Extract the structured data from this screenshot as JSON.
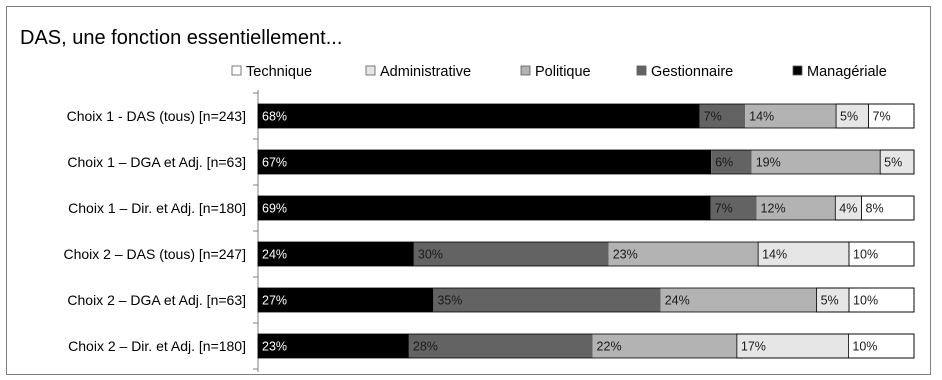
{
  "chart_data": {
    "type": "bar",
    "orientation": "horizontal",
    "stacked": "percent",
    "title": "DAS, une fonction essentiellement...",
    "legend_position": "top",
    "categories": [
      "Choix 1 - DAS (tous) [n=243]",
      "Choix 1 – DGA et Adj. [n=63]",
      "Choix 1 – Dir. et Adj. [n=180]",
      "Choix 2 – DAS (tous) [n=247]",
      "Choix 2 – DGA et Adj. [n=63]",
      "Choix 2 – Dir. et Adj. [n=180]"
    ],
    "legend_order": [
      "Technique",
      "Administrative",
      "Politique",
      "Gestionnaire",
      "Managériale"
    ],
    "series": [
      {
        "name": "Managériale",
        "color": "#000000",
        "label_color": "#ffffff",
        "values": [
          68,
          67,
          69,
          24,
          27,
          23
        ]
      },
      {
        "name": "Gestionnaire",
        "color": "#636363",
        "label_color": "#1a1a1a",
        "values": [
          7,
          6,
          7,
          30,
          35,
          28
        ]
      },
      {
        "name": "Politique",
        "color": "#b3b3b3",
        "label_color": "#1a1a1a",
        "values": [
          14,
          19,
          12,
          23,
          24,
          22
        ]
      },
      {
        "name": "Administrative",
        "color": "#e6e6e6",
        "label_color": "#1a1a1a",
        "values": [
          5,
          5,
          4,
          14,
          5,
          17
        ]
      },
      {
        "name": "Technique",
        "color": "#ffffff",
        "label_color": "#1a1a1a",
        "values": [
          7,
          0,
          8,
          10,
          10,
          10
        ]
      }
    ],
    "value_suffix": "%",
    "xlim": [
      0,
      100
    ],
    "grid": false
  }
}
